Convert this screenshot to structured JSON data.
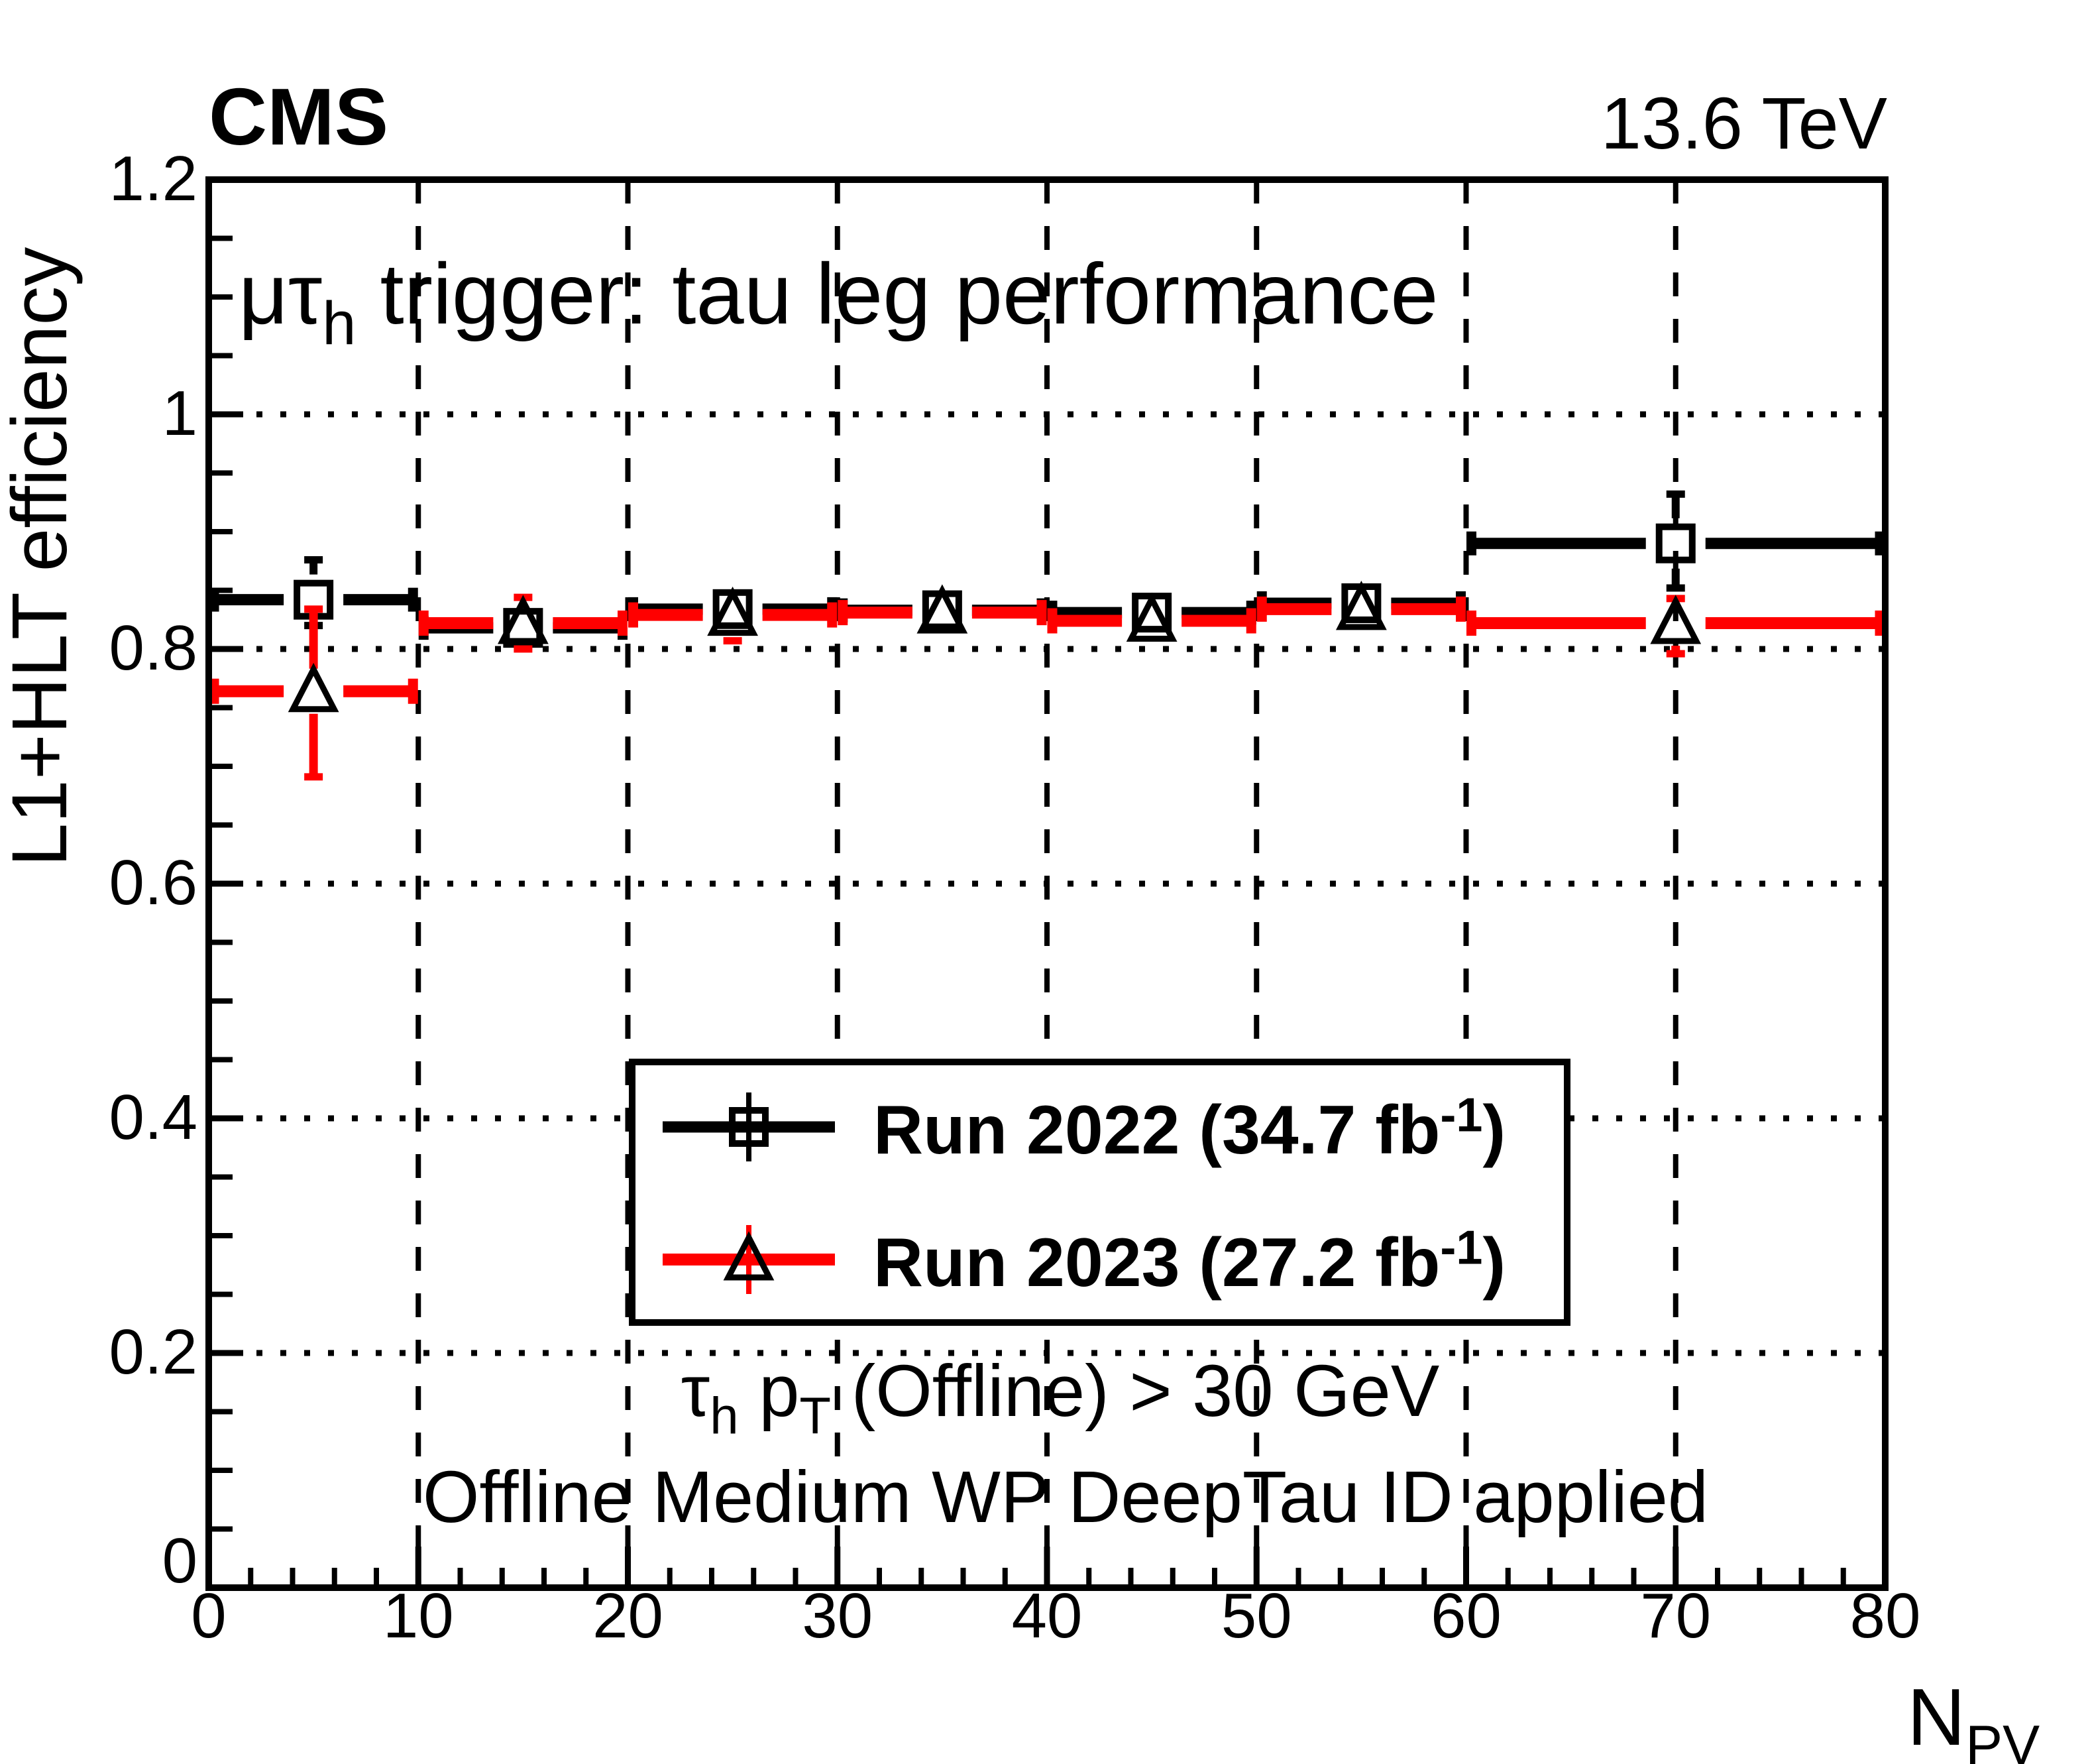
{
  "header": {
    "experiment": "CMS",
    "energy": "13.6 TeV"
  },
  "plot_title": {
    "parts": [
      {
        "t": "μτ"
      },
      {
        "t": "h",
        "sub": true
      },
      {
        "t": " trigger: tau leg performance"
      }
    ]
  },
  "legend": {
    "entries": [
      {
        "name": "run-2022",
        "color": "#000000",
        "marker": "open-square",
        "label_parts": [
          {
            "t": "Run 2022 (34.7 fb"
          },
          {
            "t": "-1",
            "sup": true
          },
          {
            "t": ")"
          }
        ]
      },
      {
        "name": "run-2023",
        "color": "#ff0000",
        "marker": "open-triangle",
        "label_parts": [
          {
            "t": "Run 2023 (27.2 fb"
          },
          {
            "t": "-1",
            "sup": true
          },
          {
            "t": ")"
          }
        ]
      }
    ]
  },
  "annotations": [
    {
      "name": "pt-cut-label",
      "parts": [
        {
          "t": "τ"
        },
        {
          "t": "h",
          "sub": true
        },
        {
          "t": " p"
        },
        {
          "t": "T",
          "sub": true
        },
        {
          "t": " (Offline) > 30 GeV"
        }
      ]
    },
    {
      "name": "deeptau-label",
      "parts": [
        {
          "t": "Offline Medium WP DeepTau ID applied"
        }
      ]
    }
  ],
  "chart_data": {
    "type": "errorbar",
    "title": "mu-tau_h trigger: tau leg performance",
    "xlabel_parts": [
      {
        "t": "N"
      },
      {
        "t": "PV",
        "sub": true
      }
    ],
    "ylabel": "L1+HLT efficiency",
    "x": {
      "min": 0,
      "max": 80,
      "major_ticks": [
        0,
        10,
        20,
        30,
        40,
        50,
        60,
        70,
        80
      ],
      "tick_labels": [
        "0",
        "10",
        "20",
        "30",
        "40",
        "50",
        "60",
        "70",
        "80"
      ],
      "minor_step": 2,
      "gridlines": [
        10,
        20,
        30,
        40,
        50,
        60,
        70
      ],
      "grid_style": "dashed"
    },
    "y": {
      "min": 0,
      "max": 1.2,
      "major_ticks": [
        0,
        0.2,
        0.4,
        0.6,
        0.8,
        1.0,
        1.2
      ],
      "tick_labels": [
        "0",
        "0.2",
        "0.4",
        "0.6",
        "0.8",
        "1",
        "1.2"
      ],
      "minor_step": 0.05,
      "gridlines": [
        0.2,
        0.4,
        0.6,
        0.8,
        1.0
      ],
      "grid_style": "dotted"
    },
    "bins": [
      [
        0,
        10
      ],
      [
        10,
        20
      ],
      [
        20,
        30
      ],
      [
        30,
        40
      ],
      [
        40,
        50
      ],
      [
        50,
        60
      ],
      [
        60,
        80
      ]
    ],
    "series": [
      {
        "name": "Run 2022 (34.7 fb-1)",
        "color": "#000000",
        "marker": "open-square",
        "values": [
          0.842,
          0.818,
          0.834,
          0.833,
          0.831,
          0.839,
          0.89
        ],
        "err_up": [
          0.034,
          0.01,
          0.01,
          0.01,
          0.01,
          0.01,
          0.042
        ],
        "err_down": [
          0.022,
          0.01,
          0.01,
          0.01,
          0.01,
          0.01,
          0.038
        ]
      },
      {
        "name": "Run 2023 (27.2 fb-1)",
        "color": "#ff0000",
        "marker": "open-triangle",
        "values": [
          0.764,
          0.822,
          0.829,
          0.831,
          0.824,
          0.834,
          0.822
        ],
        "err_up": [
          0.07,
          0.022,
          0.012,
          0.012,
          0.012,
          0.014,
          0.021
        ],
        "err_down": [
          0.073,
          0.022,
          0.022,
          0.012,
          0.012,
          0.014,
          0.026
        ]
      }
    ],
    "legend_position": "center",
    "grid": true
  },
  "colors": {
    "series_2022": "#000000",
    "series_2023": "#ff0000",
    "frame": "#000000",
    "background": "#ffffff"
  }
}
